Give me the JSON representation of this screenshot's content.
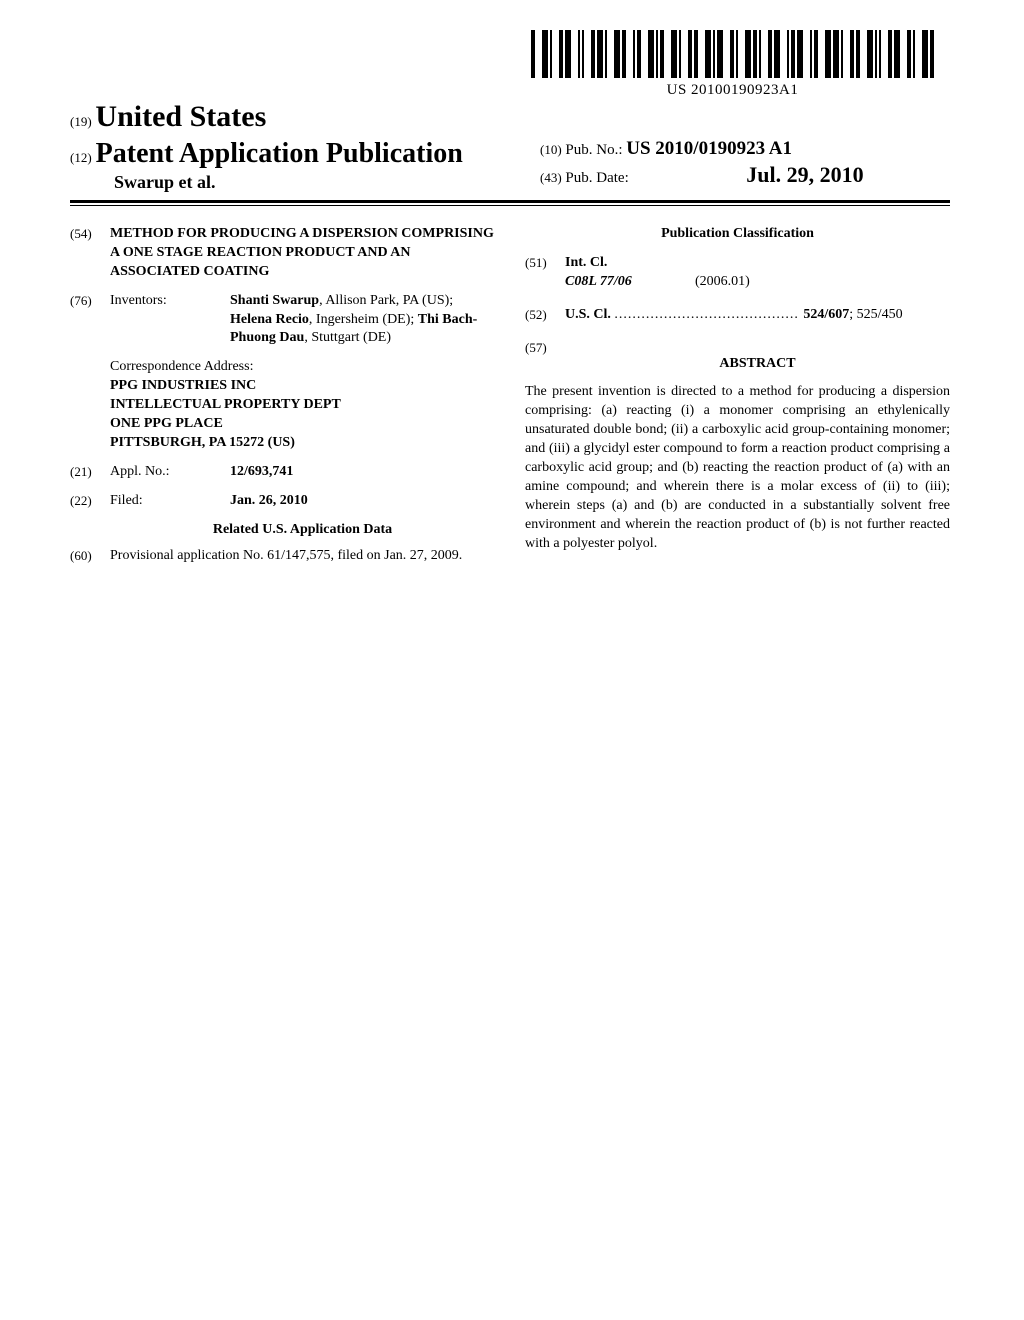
{
  "barcode": {
    "text": "US 20100190923A1"
  },
  "header": {
    "country_tag": "(19)",
    "country": "United States",
    "pub_tag": "(12)",
    "pub_label": "Patent Application Publication",
    "authors": "Swarup et al.",
    "pubno_tag": "(10)",
    "pubno_label": "Pub. No.:",
    "pubno_value": "US 2010/0190923 A1",
    "pubdate_tag": "(43)",
    "pubdate_label": "Pub. Date:",
    "pubdate_value": "Jul. 29, 2010"
  },
  "left": {
    "title_tag": "(54)",
    "title": "METHOD FOR PRODUCING A DISPERSION COMPRISING A ONE STAGE REACTION PRODUCT AND AN ASSOCIATED COATING",
    "inventors_tag": "(76)",
    "inventors_label": "Inventors:",
    "inventors_html": "<b>Shanti Swarup</b>, Allison Park, PA (US); <b>Helena Recio</b>, Ingersheim (DE); <b>Thi Bach-Phuong Dau</b>, Stuttgart (DE)",
    "correspondence_label": "Correspondence Address:",
    "correspondence_lines": [
      "PPG INDUSTRIES INC",
      "INTELLECTUAL PROPERTY DEPT",
      "ONE PPG PLACE",
      "PITTSBURGH, PA 15272 (US)"
    ],
    "applno_tag": "(21)",
    "applno_label": "Appl. No.:",
    "applno_value": "12/693,741",
    "filed_tag": "(22)",
    "filed_label": "Filed:",
    "filed_value": "Jan. 26, 2010",
    "related_heading": "Related U.S. Application Data",
    "provisional_tag": "(60)",
    "provisional_text": "Provisional application No. 61/147,575, filed on Jan. 27, 2009."
  },
  "right": {
    "classification_heading": "Publication Classification",
    "intcl_tag": "(51)",
    "intcl_label": "Int. Cl.",
    "intcl_code": "C08L 77/06",
    "intcl_date": "(2006.01)",
    "uscl_tag": "(52)",
    "uscl_label": "U.S. Cl.",
    "uscl_value": "524/607",
    "uscl_secondary": "; 525/450",
    "abstract_tag": "(57)",
    "abstract_heading": "ABSTRACT",
    "abstract_body": "The present invention is directed to a method for producing a dispersion comprising: (a) reacting (i) a monomer comprising an ethylenically unsaturated double bond; (ii) a carboxylic acid group-containing monomer; and (iii) a glycidyl ester compound to form a reaction product comprising a carboxylic acid group; and (b) reacting the reaction product of (a) with an amine compound; and wherein there is a molar excess of (ii) to (iii); wherein steps (a) and (b) are conducted in a substantially solvent free environment and wherein the reaction product of (b) is not further reacted with a polyester polyol."
  }
}
